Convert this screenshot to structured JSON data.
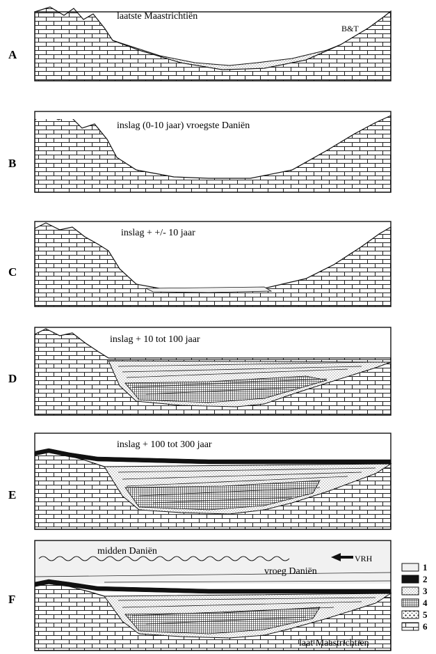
{
  "panels": [
    {
      "letter": "A",
      "caption": "laatste Maastrichtiën",
      "extra": "B&T"
    },
    {
      "letter": "B",
      "caption": "inslag (0-10 jaar) vroegste Daniën"
    },
    {
      "letter": "C",
      "caption": "inslag + +/- 10 jaar"
    },
    {
      "letter": "D",
      "caption": "inslag + 10 tot 100 jaar"
    },
    {
      "letter": "E",
      "caption": "inslag + 100 tot 300 jaar"
    },
    {
      "letter": "F",
      "caption": "midden Daniën",
      "caption2": "vroeg Daniën",
      "caption3": "laat Maastrichtiën",
      "extra": "VRH"
    }
  ],
  "legend": [
    "1",
    "2",
    "3",
    "4",
    "5",
    "6"
  ]
}
